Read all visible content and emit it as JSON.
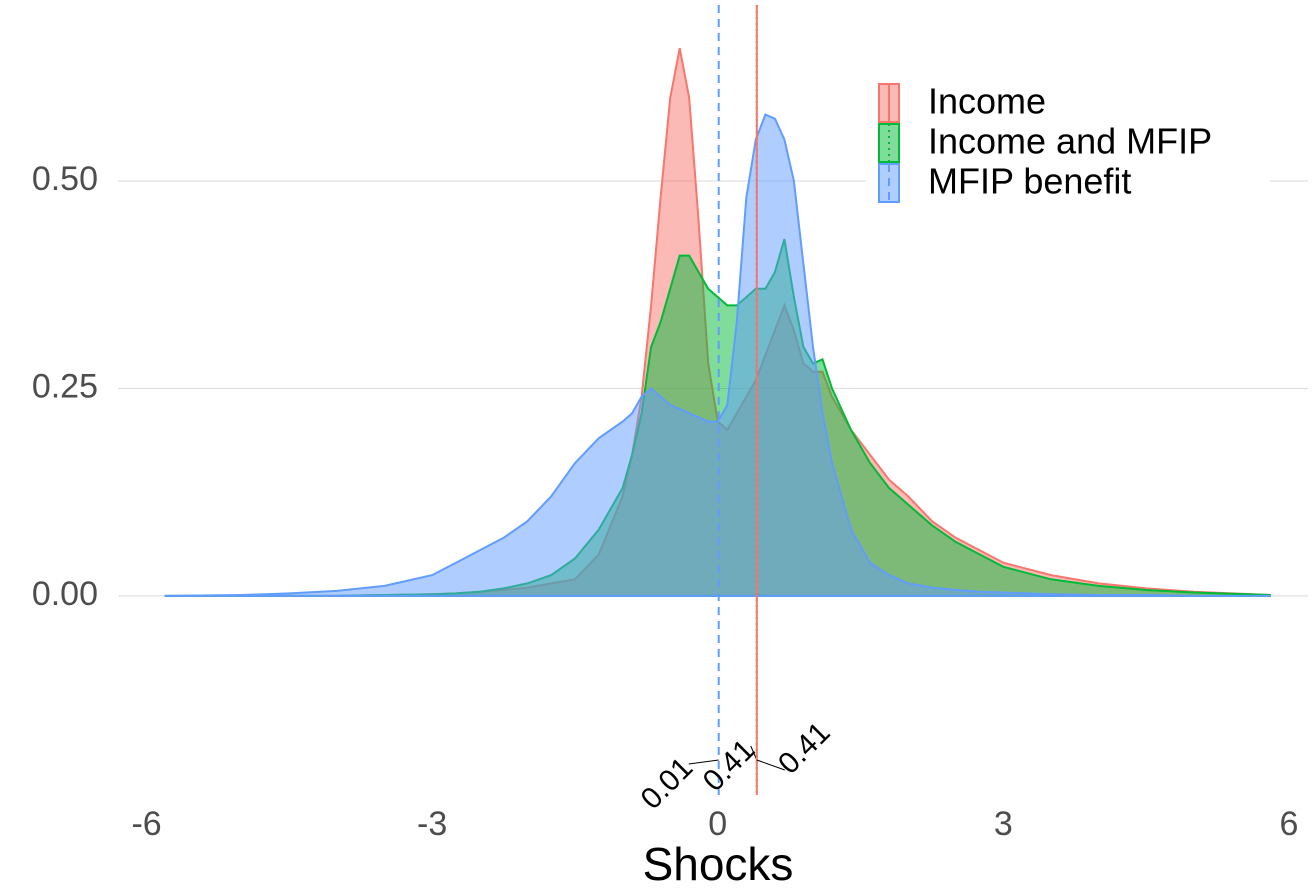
{
  "chart_data": {
    "type": "density",
    "x_label": "Shocks",
    "x": [
      -5.8,
      -5,
      -4.5,
      -4,
      -3.5,
      -3,
      -2.75,
      -2.5,
      -2.25,
      -2,
      -1.75,
      -1.5,
      -1.25,
      -1,
      -0.9,
      -0.8,
      -0.7,
      -0.6,
      -0.5,
      -0.4,
      -0.3,
      -0.2,
      -0.1,
      0,
      0.1,
      0.2,
      0.3,
      0.4,
      0.5,
      0.6,
      0.7,
      0.8,
      0.9,
      1,
      1.1,
      1.2,
      1.4,
      1.6,
      1.8,
      2,
      2.25,
      2.5,
      2.75,
      3,
      3.5,
      4,
      4.5,
      5,
      5.8
    ],
    "series": [
      {
        "name": "Income",
        "color": "#F8766D",
        "linetype": "solid",
        "values": [
          0,
          0,
          0,
          0,
          0.001,
          0.002,
          0.003,
          0.005,
          0.007,
          0.01,
          0.015,
          0.02,
          0.05,
          0.12,
          0.17,
          0.24,
          0.35,
          0.48,
          0.6,
          0.66,
          0.6,
          0.45,
          0.28,
          0.21,
          0.2,
          0.22,
          0.24,
          0.26,
          0.29,
          0.32,
          0.35,
          0.32,
          0.28,
          0.27,
          0.27,
          0.24,
          0.2,
          0.17,
          0.14,
          0.12,
          0.09,
          0.07,
          0.055,
          0.04,
          0.025,
          0.015,
          0.009,
          0.005,
          0.001
        ]
      },
      {
        "name": "Income and MFIP",
        "color": "#00BA38",
        "linetype": "dotted",
        "values": [
          0,
          0,
          0,
          0,
          0.001,
          0.002,
          0.003,
          0.005,
          0.009,
          0.015,
          0.025,
          0.045,
          0.08,
          0.13,
          0.17,
          0.22,
          0.3,
          0.33,
          0.37,
          0.41,
          0.41,
          0.39,
          0.37,
          0.36,
          0.35,
          0.35,
          0.36,
          0.37,
          0.37,
          0.39,
          0.43,
          0.36,
          0.3,
          0.28,
          0.285,
          0.25,
          0.2,
          0.16,
          0.13,
          0.11,
          0.085,
          0.065,
          0.05,
          0.035,
          0.02,
          0.012,
          0.007,
          0.004,
          0.001
        ]
      },
      {
        "name": "MFIP benefit",
        "color": "#619CFF",
        "linetype": "dashed",
        "values": [
          0,
          0.001,
          0.003,
          0.006,
          0.012,
          0.025,
          0.04,
          0.055,
          0.07,
          0.09,
          0.12,
          0.16,
          0.19,
          0.21,
          0.22,
          0.24,
          0.25,
          0.24,
          0.23,
          0.225,
          0.22,
          0.215,
          0.21,
          0.21,
          0.23,
          0.33,
          0.48,
          0.55,
          0.58,
          0.575,
          0.55,
          0.5,
          0.4,
          0.3,
          0.22,
          0.16,
          0.08,
          0.04,
          0.025,
          0.015,
          0.01,
          0.007,
          0.005,
          0.004,
          0.002,
          0.001,
          0.001,
          0,
          0
        ]
      }
    ],
    "vlines": [
      {
        "value": 0.01,
        "color": "#619CFF",
        "linetype": "dashed"
      },
      {
        "value": 0.41,
        "color": "#00BA38",
        "linetype": "dotted"
      },
      {
        "value": 0.41,
        "color": "#F8766D",
        "linetype": "solid"
      }
    ],
    "xlim": [
      -6.3,
      6.2
    ],
    "xticks": [
      -6,
      -3,
      0,
      3,
      6
    ],
    "ylim": [
      -0.24,
      0.7
    ],
    "yticks": [
      {
        "value": 0,
        "label": "0.00"
      },
      {
        "value": 0.25,
        "label": "0.25"
      },
      {
        "value": 0.5,
        "label": "0.50"
      }
    ],
    "grid": true,
    "legend": "top-right"
  }
}
